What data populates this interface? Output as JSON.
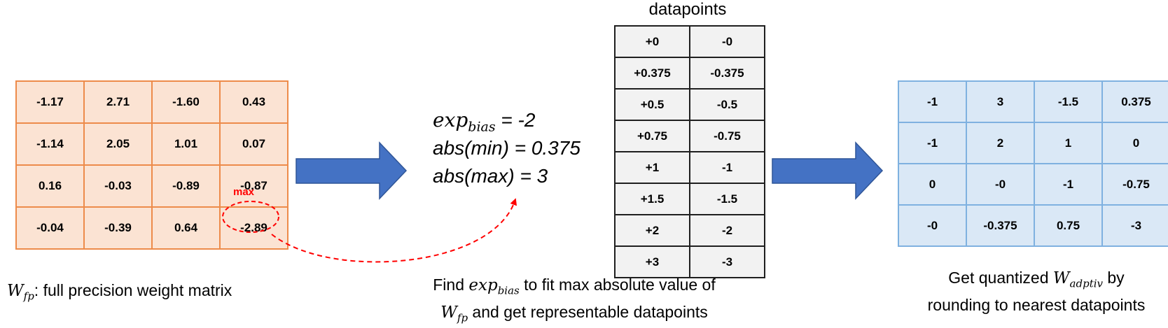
{
  "left_matrix": {
    "rows": [
      [
        "-1.17",
        "2.71",
        "-1.60",
        "0.43"
      ],
      [
        "-1.14",
        "2.05",
        "1.01",
        "0.07"
      ],
      [
        "0.16",
        "-0.03",
        "-0.89",
        "-0.87"
      ],
      [
        "-0.04",
        "-0.39",
        "0.64",
        "-2.89"
      ]
    ],
    "max_label": "max",
    "caption": {
      "symbol": "W",
      "subscript": "fp",
      "text": ": full precision weight matrix"
    }
  },
  "middle": {
    "line1": {
      "symbol": "exp",
      "subscript": "bias",
      "rest": " = -2"
    },
    "line2": "abs(min) = 0.375",
    "line3": "abs(max) = 3",
    "caption": {
      "part1": "Find ",
      "symbol": "exp",
      "subscript": "bias",
      "part2": " to fit max absolute value of",
      "symbol2": "W",
      "subscript2": "fp",
      "part3": " and get representable datapoints"
    }
  },
  "datapoints": {
    "title": "datapoints",
    "rows": [
      [
        "+0",
        "-0"
      ],
      [
        "+0.375",
        "-0.375"
      ],
      [
        "+0.5",
        "-0.5"
      ],
      [
        "+0.75",
        "-0.75"
      ],
      [
        "+1",
        "-1"
      ],
      [
        "+1.5",
        "-1.5"
      ],
      [
        "+2",
        "-2"
      ],
      [
        "+3",
        "-3"
      ]
    ]
  },
  "right_matrix": {
    "rows": [
      [
        "-1",
        "3",
        "-1.5",
        "0.375"
      ],
      [
        "-1",
        "2",
        "1",
        "0"
      ],
      [
        "0",
        "-0",
        "-1",
        "-0.75"
      ],
      [
        "-0",
        "-0.375",
        "0.75",
        "-3"
      ]
    ],
    "caption": {
      "part1": "Get quantized ",
      "symbol": "W",
      "subscript": "adptiv",
      "part2": " by",
      "line2": "rounding to nearest datapoints"
    }
  },
  "colors": {
    "arrow": "#4472c4",
    "arrow_border": "#2f5597",
    "highlight": "#ff0000",
    "left_fill": "#fbe3d3",
    "left_border": "#ed8b4a",
    "right_fill": "#dae8f6",
    "right_border": "#7fb1e0"
  }
}
